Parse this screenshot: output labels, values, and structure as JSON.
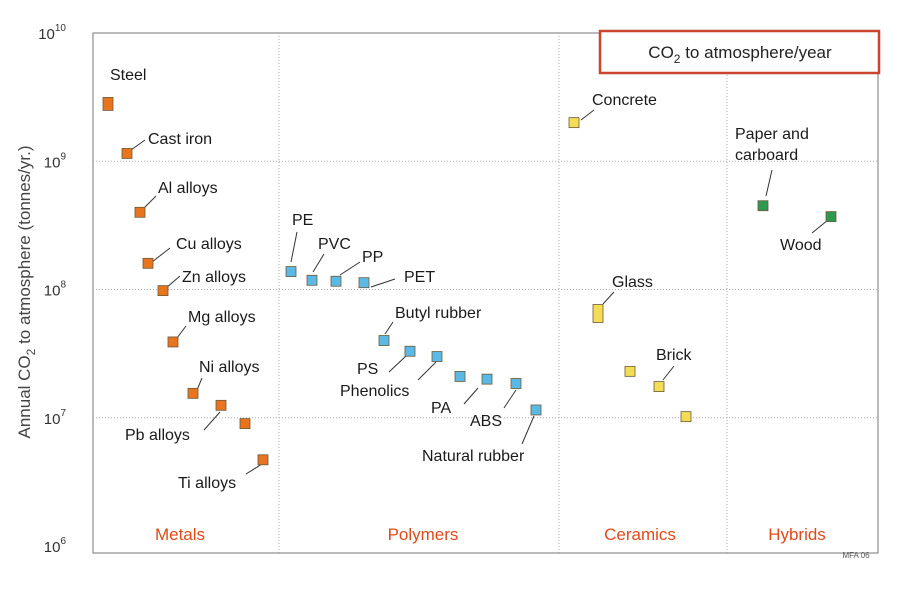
{
  "chart_data": {
    "type": "scatter",
    "ylabel_parts": [
      "Annual CO",
      "2",
      " to atmosphere (tonnes/yr.)"
    ],
    "yscale": "log",
    "ylim": [
      1000000,
      10000000000
    ],
    "yticks": [
      {
        "base": "10",
        "exp": "6"
      },
      {
        "base": "10",
        "exp": "7"
      },
      {
        "base": "10",
        "exp": "8"
      },
      {
        "base": "10",
        "exp": "9"
      },
      {
        "base": "10",
        "exp": "10"
      }
    ],
    "legend_parts": [
      "CO",
      "2",
      " to atmosphere/year"
    ],
    "legend_position": "top-right",
    "grid": true,
    "credit": "MFA 06",
    "colors": {
      "Metals": "#e8741e",
      "Polymers": "#5bb9e6",
      "Ceramics": "#f2dd55",
      "Hybrids": "#2e9a4e",
      "category_text": "#e04a1a",
      "legend_border": "#c9452e"
    },
    "categories": [
      "Metals",
      "Polymers",
      "Ceramics",
      "Hybrids"
    ],
    "points": [
      {
        "label": "Steel",
        "category": "Metals",
        "value": 2800000000
      },
      {
        "label": "Cast iron",
        "category": "Metals",
        "value": 1150000000
      },
      {
        "label": "Al alloys",
        "category": "Metals",
        "value": 400000000
      },
      {
        "label": "Cu alloys",
        "category": "Metals",
        "value": 160000000
      },
      {
        "label": "Zn alloys",
        "category": "Metals",
        "value": 98000000
      },
      {
        "label": "Mg alloys",
        "category": "Metals",
        "value": 39000000
      },
      {
        "label": "Ni alloys",
        "category": "Metals",
        "value": 15500000
      },
      {
        "label": "Pb alloys",
        "category": "Metals",
        "value": 12500000
      },
      {
        "label": "",
        "category": "Metals",
        "value": 9000000
      },
      {
        "label": "Ti alloys",
        "category": "Metals",
        "value": 4700000
      },
      {
        "label": "PE",
        "category": "Polymers",
        "value": 138000000
      },
      {
        "label": "PVC",
        "category": "Polymers",
        "value": 118000000
      },
      {
        "label": "PP",
        "category": "Polymers",
        "value": 116000000
      },
      {
        "label": "PET",
        "category": "Polymers",
        "value": 113000000
      },
      {
        "label": "Butyl rubber",
        "category": "Polymers",
        "value": 40000000
      },
      {
        "label": "PS",
        "category": "Polymers",
        "value": 33000000
      },
      {
        "label": "Phenolics",
        "category": "Polymers",
        "value": 30000000
      },
      {
        "label": "",
        "category": "Polymers",
        "value": 21000000
      },
      {
        "label": "PA",
        "category": "Polymers",
        "value": 20000000
      },
      {
        "label": "ABS",
        "category": "Polymers",
        "value": 18500000
      },
      {
        "label": "Natural rubber",
        "category": "Polymers",
        "value": 11500000
      },
      {
        "label": "Concrete",
        "category": "Ceramics",
        "value": 2000000000
      },
      {
        "label": "Glass",
        "category": "Ceramics",
        "value": 65000000
      },
      {
        "label": "",
        "category": "Ceramics",
        "value": 23000000
      },
      {
        "label": "Brick",
        "category": "Ceramics",
        "value": 17500000
      },
      {
        "label": "",
        "category": "Ceramics",
        "value": 10200000
      },
      {
        "label": "Paper and carboard",
        "category": "Hybrids",
        "value": 450000000
      },
      {
        "label": "Wood",
        "category": "Hybrids",
        "value": 370000000
      }
    ]
  }
}
